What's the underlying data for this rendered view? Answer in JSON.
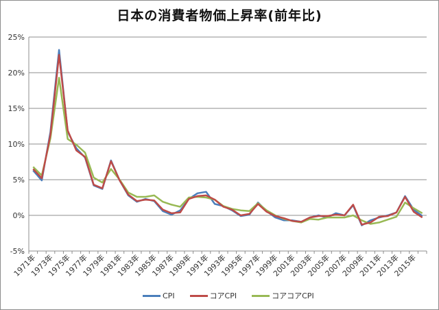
{
  "chart_data": {
    "type": "line",
    "title": "日本の消費者物価上昇率(前年比)",
    "xlabel": "",
    "ylabel": "",
    "ylim": [
      -5,
      25
    ],
    "yticks": [
      "25%",
      "20%",
      "15%",
      "10%",
      "5%",
      "0%",
      "-5%"
    ],
    "grid": true,
    "legend_position": "bottom",
    "x": [
      1971,
      1972,
      1973,
      1974,
      1975,
      1976,
      1977,
      1978,
      1979,
      1980,
      1981,
      1982,
      1983,
      1984,
      1985,
      1986,
      1987,
      1988,
      1989,
      1990,
      1991,
      1992,
      1993,
      1994,
      1995,
      1996,
      1997,
      1998,
      1999,
      2000,
      2001,
      2002,
      2003,
      2004,
      2005,
      2006,
      2007,
      2008,
      2009,
      2010,
      2011,
      2012,
      2013,
      2014,
      2015,
      2016
    ],
    "xtick_labels": [
      "1971年",
      "1973年",
      "1975年",
      "1977年",
      "1979年",
      "1981年",
      "1983年",
      "1985年",
      "1987年",
      "1989年",
      "1991年",
      "1993年",
      "1995年",
      "1997年",
      "1999年",
      "2001年",
      "2003年",
      "2005年",
      "2007年",
      "2009年",
      "2011年",
      "2013年",
      "2015年"
    ],
    "series": [
      {
        "name": "CPI",
        "color": "#4a7ebb",
        "values": [
          6.3,
          4.9,
          11.7,
          23.2,
          11.7,
          9.4,
          8.1,
          4.2,
          3.7,
          7.7,
          4.9,
          2.8,
          1.9,
          2.3,
          2.0,
          0.6,
          0.1,
          0.7,
          2.3,
          3.1,
          3.3,
          1.6,
          1.3,
          0.7,
          -0.1,
          0.1,
          1.8,
          0.6,
          -0.3,
          -0.7,
          -0.7,
          -0.9,
          -0.3,
          0.0,
          -0.3,
          0.3,
          0.0,
          1.4,
          -1.4,
          -0.7,
          -0.3,
          0.0,
          0.4,
          2.7,
          0.8,
          -0.1
        ]
      },
      {
        "name": "コアCPI",
        "color": "#be4b48",
        "values": [
          6.5,
          5.2,
          11.3,
          22.5,
          11.9,
          9.1,
          8.2,
          4.3,
          3.8,
          7.6,
          4.9,
          2.9,
          2.0,
          2.2,
          2.1,
          0.8,
          0.3,
          0.4,
          2.3,
          2.7,
          2.8,
          2.2,
          1.2,
          0.8,
          0.0,
          0.2,
          1.6,
          0.5,
          -0.1,
          -0.4,
          -0.8,
          -0.9,
          -0.3,
          -0.1,
          -0.1,
          0.1,
          0.0,
          1.5,
          -1.3,
          -1.0,
          -0.2,
          -0.1,
          0.4,
          2.6,
          0.5,
          -0.3
        ]
      },
      {
        "name": "コアコアCPI",
        "color": "#98b954",
        "values": [
          6.8,
          5.6,
          10.8,
          19.3,
          10.7,
          9.9,
          8.8,
          5.3,
          4.6,
          6.5,
          5.0,
          3.2,
          2.6,
          2.6,
          2.8,
          1.9,
          1.5,
          1.2,
          2.5,
          2.6,
          2.5,
          2.2,
          1.3,
          0.9,
          0.7,
          0.6,
          1.7,
          0.7,
          0.0,
          -0.5,
          -0.8,
          -1.0,
          -0.5,
          -0.6,
          -0.3,
          -0.3,
          -0.3,
          0.0,
          -0.7,
          -1.2,
          -1.0,
          -0.6,
          -0.2,
          1.8,
          1.0,
          0.3
        ]
      }
    ]
  },
  "legend": {
    "items": [
      {
        "label": "CPI",
        "color": "#4a7ebb"
      },
      {
        "label": "コアCPI",
        "color": "#be4b48"
      },
      {
        "label": "コアコアCPI",
        "color": "#98b954"
      }
    ]
  }
}
